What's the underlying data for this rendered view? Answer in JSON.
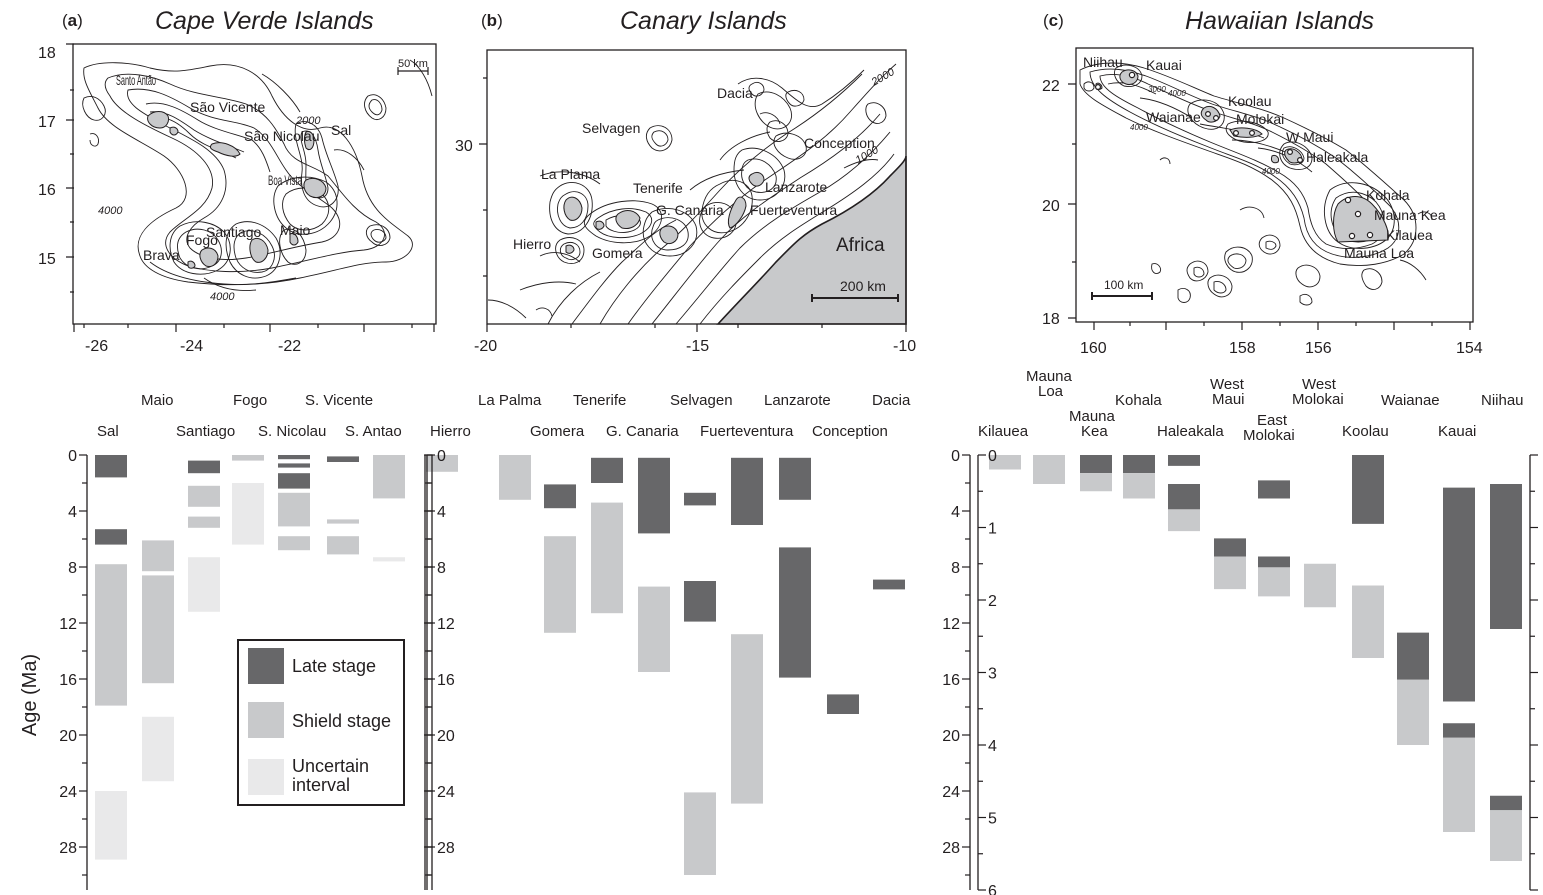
{
  "maps": [
    {
      "id": "a",
      "panel_letter": "a",
      "title": "Cape Verde Islands",
      "x_ticks": [
        "-26",
        "-24",
        "-22"
      ],
      "y_ticks": [
        "18",
        "17",
        "16",
        "15"
      ],
      "scale_label": "50 km",
      "contour_labels": [
        "2000",
        "4000",
        "4000"
      ],
      "islands": [
        "Santo Antão",
        "São Vicente",
        "São Nicolau",
        "Sal",
        "Boa Vista",
        "Santiago",
        "Maio",
        "Fogo",
        "Brava"
      ]
    },
    {
      "id": "b",
      "panel_letter": "b",
      "title": "Canary Islands",
      "x_ticks": [
        "-20",
        "-15",
        "-10"
      ],
      "y_ticks": [
        "30"
      ],
      "scale_label": "200 km",
      "contour_labels": [
        "2000",
        "1000"
      ],
      "continent": "Africa",
      "islands": [
        "Dacia",
        "Selvagen",
        "Conception",
        "La Plama",
        "Tenerife",
        "Lanzarote",
        "G. Canaria",
        "Fuerteventura",
        "Hierro",
        "Gomera"
      ]
    },
    {
      "id": "c",
      "panel_letter": "c",
      "title": "Hawaiian Islands",
      "x_ticks": [
        "160",
        "158",
        "156",
        "154"
      ],
      "y_ticks": [
        "22",
        "20",
        "18"
      ],
      "scale_label": "100 km",
      "contour_labels": [
        "3000",
        "4000",
        "4000",
        "4000"
      ],
      "islands": [
        "Niihau",
        "Kauai",
        "Koolau",
        "Waianae",
        "Molokai",
        "W Maui",
        "Haleakala",
        "Kohala",
        "Mauna Kea",
        "Kilauea",
        "Mauna Loa"
      ]
    }
  ],
  "age_axis": {
    "ylabel": "Age (Ma)",
    "ticks_ma": [
      "0",
      "4",
      "8",
      "12",
      "16",
      "20",
      "24",
      "28"
    ],
    "hawaii_ticks_ma": [
      "0",
      "1",
      "2",
      "3",
      "4",
      "5",
      "6"
    ]
  },
  "legend": {
    "items": [
      {
        "label": "Late stage",
        "color": "#676769"
      },
      {
        "label": "Shield stage",
        "color": "#c8c9cb"
      },
      {
        "label": "Uncertain interval",
        "color": "#e9e9ea"
      }
    ]
  },
  "colors": {
    "late": "#676769",
    "shield": "#c8c9cb",
    "uncertain": "#e9e9ea",
    "ink": "#231f20"
  },
  "chart_data": [
    {
      "type": "bar",
      "group": "Cape Verde Islands",
      "ylabel": "Age (Ma)",
      "ylim": [
        0,
        30
      ],
      "columns": [
        {
          "name": "Sal",
          "intervals": [
            {
              "stage": "late",
              "from": 0,
              "to": 1.6
            },
            {
              "stage": "late",
              "from": 5.3,
              "to": 6.4
            },
            {
              "stage": "shield",
              "from": 7.8,
              "to": 17.9
            },
            {
              "stage": "uncertain",
              "from": 24.0,
              "to": 28.9
            }
          ]
        },
        {
          "name": "Maio",
          "intervals": [
            {
              "stage": "shield",
              "from": 6.1,
              "to": 8.3
            },
            {
              "stage": "shield",
              "from": 8.6,
              "to": 16.3
            },
            {
              "stage": "uncertain",
              "from": 18.7,
              "to": 23.3
            }
          ]
        },
        {
          "name": "Santiago",
          "intervals": [
            {
              "stage": "late",
              "from": 0.4,
              "to": 1.3
            },
            {
              "stage": "shield",
              "from": 2.2,
              "to": 3.7
            },
            {
              "stage": "shield",
              "from": 4.4,
              "to": 5.2
            },
            {
              "stage": "uncertain",
              "from": 7.3,
              "to": 11.2
            }
          ]
        },
        {
          "name": "Fogo",
          "intervals": [
            {
              "stage": "shield",
              "from": 0,
              "to": 0.4
            },
            {
              "stage": "uncertain",
              "from": 2.0,
              "to": 6.4
            }
          ]
        },
        {
          "name": "S. Nicolau",
          "intervals": [
            {
              "stage": "late",
              "from": 0,
              "to": 0.3
            },
            {
              "stage": "late",
              "from": 0.6,
              "to": 0.9
            },
            {
              "stage": "late",
              "from": 1.3,
              "to": 2.4
            },
            {
              "stage": "shield",
              "from": 2.7,
              "to": 5.1
            },
            {
              "stage": "shield",
              "from": 5.8,
              "to": 6.8
            }
          ]
        },
        {
          "name": "S. Vicente",
          "intervals": [
            {
              "stage": "late",
              "from": 0.1,
              "to": 0.5
            },
            {
              "stage": "shield",
              "from": 4.6,
              "to": 4.9
            },
            {
              "stage": "shield",
              "from": 5.8,
              "to": 7.1
            }
          ]
        },
        {
          "name": "S. Antao",
          "intervals": [
            {
              "stage": "shield",
              "from": 0,
              "to": 3.1
            },
            {
              "stage": "uncertain",
              "from": 7.3,
              "to": 7.6
            }
          ]
        }
      ]
    },
    {
      "type": "bar",
      "group": "Canary Islands",
      "ylabel": "Age (Ma)",
      "ylim": [
        0,
        30
      ],
      "columns": [
        {
          "name": "Hierro",
          "intervals": [
            {
              "stage": "shield",
              "from": 0,
              "to": 1.2
            }
          ]
        },
        {
          "name": "La Palma",
          "intervals": [
            {
              "stage": "shield",
              "from": 0,
              "to": 3.2
            }
          ]
        },
        {
          "name": "Gomera",
          "intervals": [
            {
              "stage": "late",
              "from": 2.1,
              "to": 3.8
            },
            {
              "stage": "shield",
              "from": 5.8,
              "to": 12.7
            }
          ]
        },
        {
          "name": "Tenerife",
          "intervals": [
            {
              "stage": "late",
              "from": 0.2,
              "to": 2.0
            },
            {
              "stage": "shield",
              "from": 3.4,
              "to": 11.3
            }
          ]
        },
        {
          "name": "G. Canaria",
          "intervals": [
            {
              "stage": "late",
              "from": 0.2,
              "to": 5.6
            },
            {
              "stage": "shield",
              "from": 9.4,
              "to": 15.5
            }
          ]
        },
        {
          "name": "Selvagen",
          "intervals": [
            {
              "stage": "late",
              "from": 2.7,
              "to": 3.6
            },
            {
              "stage": "late",
              "from": 9.0,
              "to": 11.9
            },
            {
              "stage": "shield",
              "from": 24.1,
              "to": 30.0
            }
          ]
        },
        {
          "name": "Fuerteventura",
          "intervals": [
            {
              "stage": "late",
              "from": 0.2,
              "to": 5.0
            },
            {
              "stage": "shield",
              "from": 12.8,
              "to": 24.9
            }
          ]
        },
        {
          "name": "Lanzarote",
          "intervals": [
            {
              "stage": "late",
              "from": 0.2,
              "to": 3.2
            },
            {
              "stage": "late",
              "from": 6.6,
              "to": 15.9
            }
          ]
        },
        {
          "name": "Conception",
          "intervals": [
            {
              "stage": "late",
              "from": 17.1,
              "to": 18.5
            }
          ]
        },
        {
          "name": "Dacia",
          "intervals": [
            {
              "stage": "late",
              "from": 8.9,
              "to": 9.6
            }
          ]
        }
      ]
    },
    {
      "type": "bar",
      "group": "Hawaiian Islands",
      "ylabel": "Age (Ma)",
      "ylim": [
        0,
        6
      ],
      "columns": [
        {
          "name": "Kilauea",
          "intervals": [
            {
              "stage": "shield",
              "from": 0,
              "to": 0.2
            }
          ]
        },
        {
          "name": "Mauna Loa",
          "intervals": [
            {
              "stage": "shield",
              "from": 0,
              "to": 0.4
            }
          ]
        },
        {
          "name": "Mauna Kea",
          "intervals": [
            {
              "stage": "late",
              "from": 0,
              "to": 0.25
            },
            {
              "stage": "shield",
              "from": 0.25,
              "to": 0.5
            }
          ]
        },
        {
          "name": "Kohala",
          "intervals": [
            {
              "stage": "late",
              "from": 0,
              "to": 0.25
            },
            {
              "stage": "shield",
              "from": 0.25,
              "to": 0.6
            }
          ]
        },
        {
          "name": "Haleakala",
          "intervals": [
            {
              "stage": "late",
              "from": 0,
              "to": 0.15
            },
            {
              "stage": "late",
              "from": 0.4,
              "to": 0.75
            },
            {
              "stage": "shield",
              "from": 0.75,
              "to": 1.05
            }
          ]
        },
        {
          "name": "West Maui",
          "intervals": [
            {
              "stage": "late",
              "from": 1.15,
              "to": 1.4
            },
            {
              "stage": "shield",
              "from": 1.4,
              "to": 1.85
            }
          ]
        },
        {
          "name": "East Molokai",
          "intervals": [
            {
              "stage": "late",
              "from": 0.35,
              "to": 0.6
            },
            {
              "stage": "late",
              "from": 1.4,
              "to": 1.55
            },
            {
              "stage": "shield",
              "from": 1.55,
              "to": 1.95
            }
          ]
        },
        {
          "name": "West Molokai",
          "intervals": [
            {
              "stage": "shield",
              "from": 1.5,
              "to": 2.1
            }
          ]
        },
        {
          "name": "Koolau",
          "intervals": [
            {
              "stage": "late",
              "from": 0,
              "to": 0.95
            },
            {
              "stage": "shield",
              "from": 1.8,
              "to": 2.8
            }
          ]
        },
        {
          "name": "Waianae",
          "intervals": [
            {
              "stage": "late",
              "from": 2.45,
              "to": 3.1
            },
            {
              "stage": "shield",
              "from": 3.1,
              "to": 4.0
            }
          ]
        },
        {
          "name": "Kauai",
          "intervals": [
            {
              "stage": "late",
              "from": 0.45,
              "to": 3.4
            },
            {
              "stage": "late",
              "from": 3.7,
              "to": 3.9
            },
            {
              "stage": "shield",
              "from": 3.9,
              "to": 5.2
            }
          ]
        },
        {
          "name": "Niihau",
          "intervals": [
            {
              "stage": "late",
              "from": 0.4,
              "to": 2.4
            },
            {
              "stage": "late",
              "from": 4.7,
              "to": 4.9
            },
            {
              "stage": "shield",
              "from": 4.9,
              "to": 5.6
            }
          ]
        }
      ]
    }
  ]
}
